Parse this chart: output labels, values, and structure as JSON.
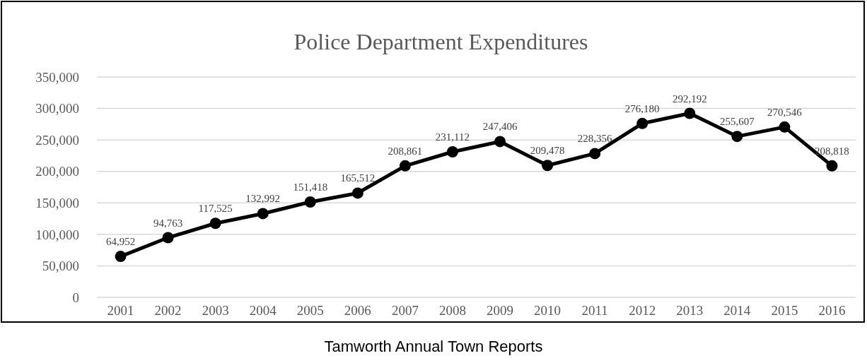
{
  "chart_data": {
    "type": "line",
    "title": "Police Department Expenditures",
    "categories": [
      "2001",
      "2002",
      "2003",
      "2004",
      "2005",
      "2006",
      "2007",
      "2008",
      "2009",
      "2010",
      "2011",
      "2012",
      "2013",
      "2014",
      "2015",
      "2016"
    ],
    "series": [
      {
        "color": "#000000",
        "values": [
          64952,
          94763,
          117525,
          132992,
          151418,
          165512,
          208861,
          231112,
          247406,
          209478,
          228356,
          276180,
          292192,
          255607,
          270546,
          208818
        ],
        "value_labels": [
          "64,952",
          "94,763",
          "117,525",
          "132,992",
          "151,418",
          "165,512",
          "208,861",
          "231,112",
          "247,406",
          "209,478",
          "228,356",
          "276,180",
          "292,192",
          "255,607",
          "270,546",
          "208,818"
        ]
      }
    ],
    "ylim": [
      0,
      350000
    ],
    "yticks": [
      {
        "value": 0,
        "label": "0"
      },
      {
        "value": 50000,
        "label": "50,000"
      },
      {
        "value": 100000,
        "label": "100,000"
      },
      {
        "value": 150000,
        "label": "150,000"
      },
      {
        "value": 200000,
        "label": "200,000"
      },
      {
        "value": 250000,
        "label": "250,000"
      },
      {
        "value": 300000,
        "label": "300,000"
      },
      {
        "value": 350000,
        "label": "350,000"
      }
    ],
    "grid": "y",
    "marker": "circle",
    "line_style": "solid",
    "annotations": [
      "Tamworth Annual Town Reports"
    ]
  }
}
